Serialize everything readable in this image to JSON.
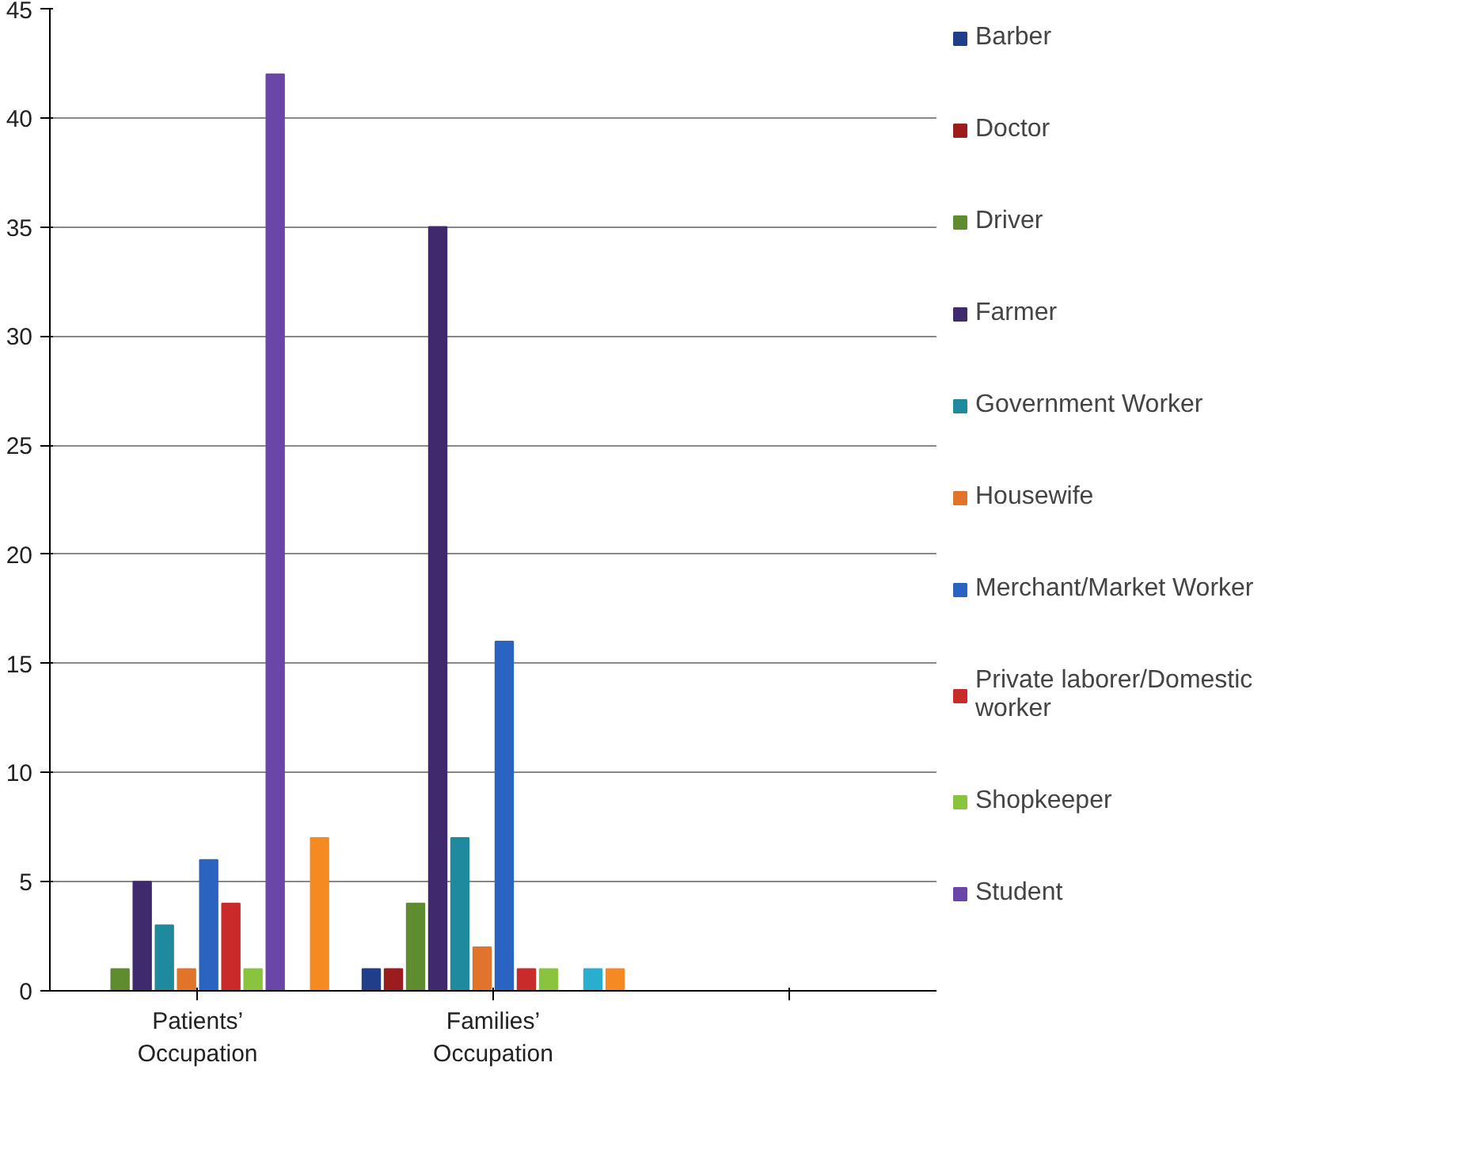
{
  "chart_data": {
    "type": "bar",
    "categories": [
      "Patients’\nOccupation",
      "Families’\nOccupation",
      null
    ],
    "series": [
      {
        "name": "Barber",
        "color": "#1f3f8a",
        "values": [
          0,
          1,
          null
        ]
      },
      {
        "name": "Doctor",
        "color": "#9b1c1c",
        "values": [
          0,
          1,
          null
        ]
      },
      {
        "name": "Driver",
        "color": "#5e8c2e",
        "values": [
          1,
          4,
          null
        ]
      },
      {
        "name": "Farmer",
        "color": "#3f2a6e",
        "values": [
          5,
          35,
          null
        ]
      },
      {
        "name": "Government Worker",
        "color": "#1f8a9e",
        "values": [
          3,
          7,
          null
        ]
      },
      {
        "name": "Housewife",
        "color": "#e0742a",
        "values": [
          1,
          2,
          null
        ]
      },
      {
        "name": "Merchant/Market Worker",
        "color": "#2a64c0",
        "values": [
          6,
          16,
          null
        ]
      },
      {
        "name": "Private laborer/Domestic\nworker",
        "color": "#c92a2a",
        "values": [
          4,
          1,
          null
        ]
      },
      {
        "name": "Shopkeeper",
        "color": "#8ac43f",
        "values": [
          1,
          1,
          null
        ]
      },
      {
        "name": "Student",
        "color": "#6a46a8",
        "values": [
          42,
          0,
          null
        ]
      },
      {
        "color": "#2aaecf",
        "values": [
          0,
          1,
          null
        ]
      },
      {
        "color": "#f58a22",
        "values": [
          7,
          1,
          null
        ]
      }
    ],
    "ylim": [
      0,
      45
    ],
    "yticks": [
      0,
      5,
      10,
      15,
      20,
      25,
      30,
      35,
      40,
      45
    ],
    "grid": "y",
    "legend": "right"
  }
}
